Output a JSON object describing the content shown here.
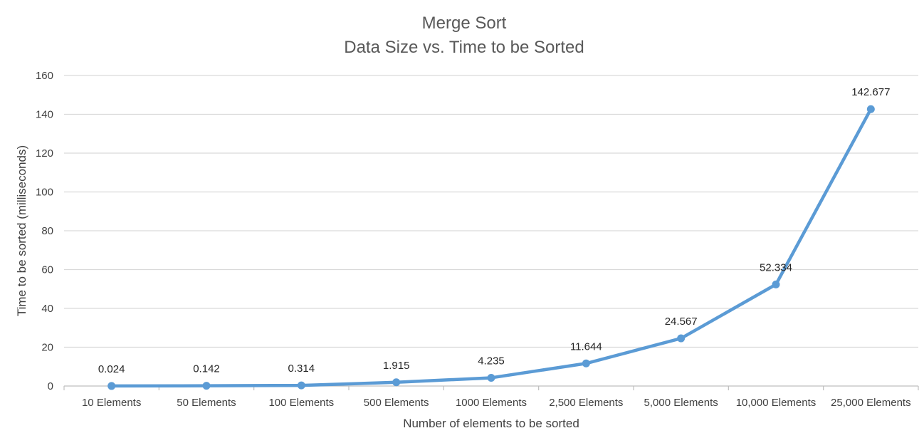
{
  "chart_data": {
    "type": "line",
    "title": "Merge Sort",
    "subtitle": "Data Size vs. Time to be Sorted",
    "xlabel": "Number of elements to be sorted",
    "ylabel": "Time to be sorted (milliseconds)",
    "categories": [
      "10 Elements",
      "50 Elements",
      "100 Elements",
      "500 Elements",
      "1000 Elements",
      "2,500 Elements",
      "5,000 Elements",
      "10,000 Elements",
      "25,000 Elements"
    ],
    "series": [
      {
        "values": [
          0.024,
          0.142,
          0.314,
          1.915,
          4.235,
          11.644,
          24.567,
          52.334,
          142.677
        ]
      }
    ],
    "data_labels": [
      "0.024",
      "0.142",
      "0.314",
      "1.915",
      "4.235",
      "11.644",
      "24.567",
      "52.334",
      "142.677"
    ],
    "ylim": [
      0,
      160
    ],
    "yticks": [
      0,
      20,
      40,
      60,
      80,
      100,
      120,
      140,
      160
    ],
    "grid": true,
    "legend": "none",
    "colors": {
      "series": "#5b9bd5",
      "grid": "#d9d9d9",
      "text": "#404040",
      "title": "#595959"
    }
  }
}
